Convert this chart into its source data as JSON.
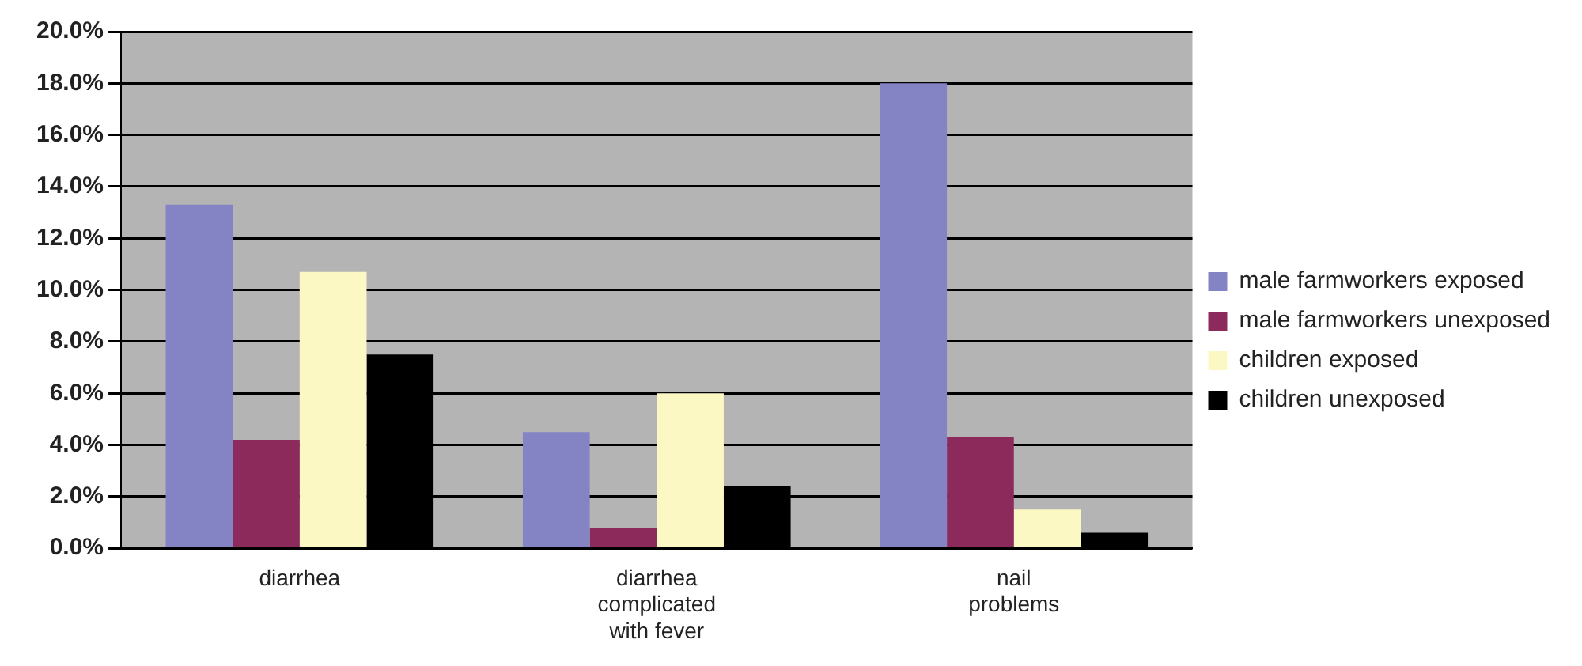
{
  "chart_data": {
    "type": "bar",
    "categories": [
      "diarrhea",
      "diarrhea complicated with fever",
      "nail problems"
    ],
    "series": [
      {
        "name": "male farmworkers exposed",
        "color": "#8484c4",
        "values": [
          13.3,
          4.5,
          18.0
        ]
      },
      {
        "name": "male farmworkers unexposed",
        "color": "#8c2a5c",
        "values": [
          4.2,
          0.8,
          4.3
        ]
      },
      {
        "name": "children exposed",
        "color": "#fcf8c4",
        "values": [
          10.7,
          6.0,
          1.5
        ]
      },
      {
        "name": "children unexposed",
        "color": "#000000",
        "values": [
          7.5,
          2.4,
          0.6
        ]
      }
    ],
    "ylim": [
      0,
      20
    ],
    "yticks": [
      {
        "value": 0,
        "label": "0.0%"
      },
      {
        "value": 2,
        "label": "2.0%"
      },
      {
        "value": 4,
        "label": "4.0%"
      },
      {
        "value": 6,
        "label": "6.0%"
      },
      {
        "value": 8,
        "label": "8.0%"
      },
      {
        "value": 10,
        "label": "10.0%"
      },
      {
        "value": 12,
        "label": "12.0%"
      },
      {
        "value": 14,
        "label": "14.0%"
      },
      {
        "value": 16,
        "label": "16.0%"
      },
      {
        "value": 18,
        "label": "18.0%"
      },
      {
        "value": 20,
        "label": "20.0%"
      }
    ],
    "grid": "y",
    "legend": "right"
  }
}
